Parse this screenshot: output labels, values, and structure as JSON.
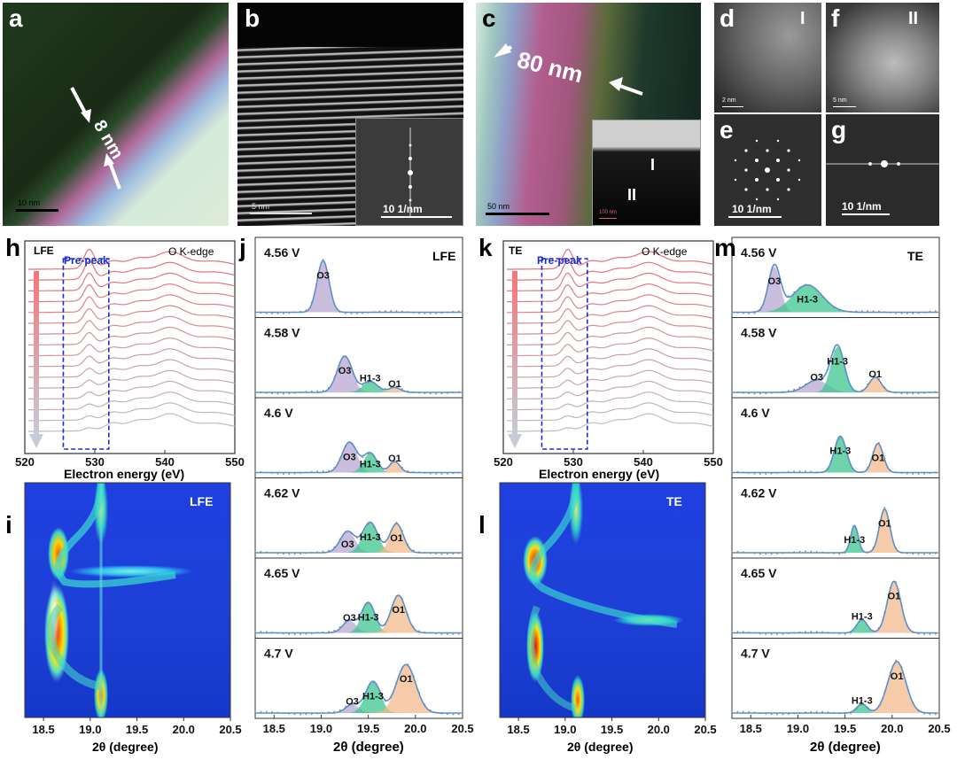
{
  "panels": {
    "a": {
      "letter": "a",
      "annotation": "8 nm",
      "scale": "10 nm"
    },
    "b": {
      "letter": "b",
      "scale": "5 nm",
      "fft_scale": "10 1/nm"
    },
    "c": {
      "letter": "c",
      "annotation": "80 nm",
      "scale": "50 nm",
      "inset_region_I": "I",
      "inset_region_II": "II",
      "inset_scale": "100 nm"
    },
    "d": {
      "letter": "d",
      "region": "I",
      "scale": "2 nm"
    },
    "e": {
      "letter": "e",
      "scale": "10 1/nm"
    },
    "f": {
      "letter": "f",
      "region": "II",
      "scale": "5 nm"
    },
    "g": {
      "letter": "g",
      "scale": "10 1/nm"
    },
    "h": {
      "letter": "h",
      "sample": "LFE",
      "box_label": "Pre-peak",
      "edge": "O K-edge",
      "xlabel": "Electron energy (eV)",
      "xticks": [
        "520",
        "530",
        "540",
        "550"
      ]
    },
    "k": {
      "letter": "k",
      "sample": "TE",
      "box_label": "Pre-peak",
      "edge": "O K-edge",
      "xlabel": "Electron energy (eV)",
      "xticks": [
        "520",
        "530",
        "540",
        "550"
      ]
    },
    "i": {
      "letter": "i",
      "sample": "LFE",
      "xlabel": "2θ (degree)",
      "xticks": [
        "18.5",
        "19.0",
        "19.5",
        "20.0",
        "20.5"
      ]
    },
    "l": {
      "letter": "l",
      "sample": "TE",
      "xlabel": "2θ (degree)",
      "xticks": [
        "18.5",
        "19.0",
        "19.5",
        "20.0",
        "20.5"
      ]
    },
    "j": {
      "letter": "j",
      "sample": "LFE",
      "xlabel": "2θ (degree)",
      "xticks": [
        "18.5",
        "19.0",
        "19.5",
        "20.0",
        "20.5"
      ]
    },
    "m": {
      "letter": "m",
      "sample": "TE",
      "xlabel": "2θ (degree)",
      "xticks": [
        "18.5",
        "19.0",
        "19.5",
        "20.0",
        "20.5"
      ]
    }
  },
  "colors": {
    "O3": "#b9a7d3",
    "H1-3": "#3cc58f",
    "O1": "#f2b98c",
    "fit": "#5b8fc9",
    "prepeak_box": "#1a2bd6"
  },
  "chart_data": [
    {
      "type": "area",
      "panel": "j",
      "sample": "LFE",
      "xlabel": "2θ (degree)",
      "xlim": [
        18.3,
        20.5
      ],
      "voltages": [
        {
          "label": "4.56 V",
          "peaks": [
            {
              "name": "O3",
              "center": 19.02,
              "height": 0.85,
              "width": 0.08
            }
          ]
        },
        {
          "label": "4.58 V",
          "peaks": [
            {
              "name": "O3",
              "center": 19.25,
              "height": 0.6,
              "width": 0.1
            },
            {
              "name": "H1-3",
              "center": 19.52,
              "height": 0.18,
              "width": 0.1
            },
            {
              "name": "O1",
              "center": 19.78,
              "height": 0.08,
              "width": 0.08
            }
          ]
        },
        {
          "label": "4.6 V",
          "peaks": [
            {
              "name": "O3",
              "center": 19.3,
              "height": 0.5,
              "width": 0.1
            },
            {
              "name": "H1-3",
              "center": 19.52,
              "height": 0.32,
              "width": 0.09
            },
            {
              "name": "O1",
              "center": 19.78,
              "height": 0.18,
              "width": 0.07
            }
          ]
        },
        {
          "label": "4.62 V",
          "peaks": [
            {
              "name": "O3",
              "center": 19.28,
              "height": 0.35,
              "width": 0.1
            },
            {
              "name": "H1-3",
              "center": 19.52,
              "height": 0.5,
              "width": 0.1
            },
            {
              "name": "O1",
              "center": 19.8,
              "height": 0.48,
              "width": 0.09
            }
          ]
        },
        {
          "label": "4.65 V",
          "peaks": [
            {
              "name": "O3",
              "center": 19.3,
              "height": 0.2,
              "width": 0.09
            },
            {
              "name": "H1-3",
              "center": 19.5,
              "height": 0.5,
              "width": 0.09
            },
            {
              "name": "O1",
              "center": 19.82,
              "height": 0.62,
              "width": 0.1
            }
          ]
        },
        {
          "label": "4.7 V",
          "peaks": [
            {
              "name": "O3",
              "center": 19.33,
              "height": 0.14,
              "width": 0.09
            },
            {
              "name": "H1-3",
              "center": 19.55,
              "height": 0.52,
              "width": 0.1
            },
            {
              "name": "O1",
              "center": 19.9,
              "height": 0.8,
              "width": 0.13
            }
          ]
        }
      ]
    },
    {
      "type": "area",
      "panel": "m",
      "sample": "TE",
      "xlabel": "2θ (degree)",
      "xlim": [
        18.3,
        20.5
      ],
      "voltages": [
        {
          "label": "4.56 V",
          "peaks": [
            {
              "name": "O3",
              "center": 18.75,
              "height": 0.75,
              "width": 0.08
            },
            {
              "name": "H1-3",
              "center": 19.1,
              "height": 0.45,
              "width": 0.2
            }
          ]
        },
        {
          "label": "4.58 V",
          "peaks": [
            {
              "name": "O3",
              "center": 19.2,
              "height": 0.2,
              "width": 0.15
            },
            {
              "name": "H1-3",
              "center": 19.42,
              "height": 0.75,
              "width": 0.09
            },
            {
              "name": "O1",
              "center": 19.82,
              "height": 0.25,
              "width": 0.08
            }
          ]
        },
        {
          "label": "4.6 V",
          "peaks": [
            {
              "name": "H1-3",
              "center": 19.45,
              "height": 0.6,
              "width": 0.08
            },
            {
              "name": "O1",
              "center": 19.85,
              "height": 0.48,
              "width": 0.07
            }
          ]
        },
        {
          "label": "4.62 V",
          "peaks": [
            {
              "name": "H1-3",
              "center": 19.6,
              "height": 0.45,
              "width": 0.05
            },
            {
              "name": "O1",
              "center": 19.92,
              "height": 0.72,
              "width": 0.07
            }
          ]
        },
        {
          "label": "4.65 V",
          "peaks": [
            {
              "name": "H1-3",
              "center": 19.68,
              "height": 0.22,
              "width": 0.07
            },
            {
              "name": "O1",
              "center": 20.02,
              "height": 0.85,
              "width": 0.09
            }
          ]
        },
        {
          "label": "4.7 V",
          "peaks": [
            {
              "name": "H1-3",
              "center": 19.68,
              "height": 0.15,
              "width": 0.07
            },
            {
              "name": "O1",
              "center": 20.05,
              "height": 0.85,
              "width": 0.12
            }
          ]
        }
      ]
    },
    {
      "type": "line",
      "panel": "h",
      "sample": "LFE",
      "xlabel": "Electron energy (eV)",
      "xlim": [
        520,
        550
      ],
      "n_spectra": 16,
      "prepeak_range": [
        525.5,
        532
      ],
      "features_eV": [
        529,
        532,
        536,
        540.5
      ]
    },
    {
      "type": "line",
      "panel": "k",
      "sample": "TE",
      "xlabel": "Electron energy (eV)",
      "xlim": [
        520,
        550
      ],
      "n_spectra": 16,
      "prepeak_range": [
        525.5,
        532
      ],
      "features_eV": [
        529,
        532,
        536,
        540.5
      ]
    }
  ]
}
